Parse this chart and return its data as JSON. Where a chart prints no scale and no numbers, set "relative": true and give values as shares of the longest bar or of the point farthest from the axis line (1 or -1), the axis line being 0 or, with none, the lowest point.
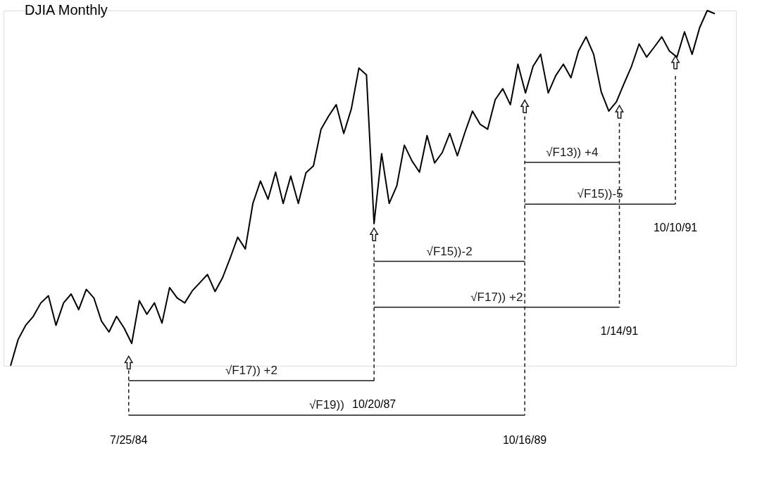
{
  "chart_data": {
    "type": "line",
    "title": "DJIA Monthly",
    "relative": true,
    "tick_labels": false,
    "grid": false,
    "legend": false,
    "line_style": "solid",
    "categories": [
      null,
      null,
      null,
      null,
      null,
      null,
      null,
      null,
      null,
      null,
      null,
      null,
      null,
      null,
      null,
      null,
      null,
      null,
      null,
      null,
      null,
      null,
      null,
      null,
      null,
      null,
      null,
      null,
      null,
      null,
      null,
      null,
      null,
      null,
      null,
      null,
      null,
      null,
      null,
      null,
      null,
      null,
      null,
      null,
      null,
      null,
      null,
      null,
      null,
      null,
      null,
      null,
      null,
      null,
      null,
      null,
      null,
      null,
      null,
      null,
      null,
      null,
      null,
      null,
      null,
      null,
      null,
      null,
      null,
      null,
      null,
      null,
      null,
      null,
      null,
      null,
      null,
      null,
      null,
      null,
      null,
      null,
      null,
      null,
      null,
      null,
      null,
      null,
      null,
      null,
      null,
      null,
      null,
      null
    ],
    "series": [
      {
        "color": "#000000",
        "values": [
          0,
          0.074,
          0.114,
          0.139,
          0.177,
          0.197,
          0.114,
          0.177,
          0.202,
          0.158,
          0.215,
          0.191,
          0.126,
          0.095,
          0.139,
          0.106,
          0.063,
          0.183,
          0.145,
          0.177,
          0.12,
          0.22,
          0.191,
          0.177,
          0.211,
          0.234,
          0.257,
          0.209,
          0.248,
          0.303,
          0.362,
          0.329,
          0.457,
          0.52,
          0.469,
          0.545,
          0.457,
          0.534,
          0.457,
          0.543,
          0.563,
          0.666,
          0.703,
          0.735,
          0.654,
          0.723,
          0.838,
          0.819,
          0.4,
          0.597,
          0.457,
          0.506,
          0.621,
          0.577,
          0.545,
          0.648,
          0.571,
          0.6,
          0.654,
          0.591,
          0.657,
          0.717,
          0.68,
          0.666,
          0.749,
          0.78,
          0.735,
          0.849,
          0.768,
          0.843,
          0.877,
          0.768,
          0.817,
          0.849,
          0.811,
          0.886,
          0.926,
          0.877,
          0.771,
          0.717,
          0.743,
          0.794,
          0.843,
          0.906,
          0.869,
          0.897,
          0.926,
          0.886,
          0.869,
          0.94,
          0.877,
          0.952,
          1,
          0.991
        ]
      }
    ],
    "annotations": [
      "√F17)) +2",
      "√F19))",
      "√F15))-2",
      "√F17)) +2",
      "√F13)) +4",
      "√F15))-5",
      "7/25/84",
      "10/20/87",
      "10/16/89",
      "1/14/91",
      "10/10/91"
    ]
  }
}
